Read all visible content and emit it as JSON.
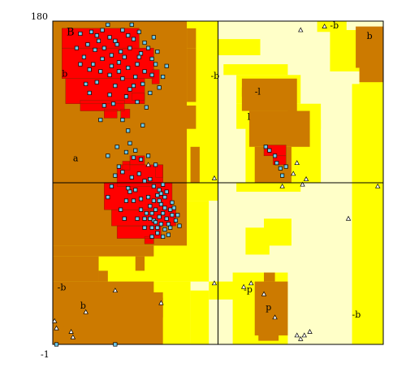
{
  "chart_data": {
    "type": "scatter",
    "title": "",
    "xlabel": "",
    "ylabel": "",
    "xlim": [
      -180,
      180
    ],
    "ylim": [
      -180,
      180
    ],
    "tick_labels": {
      "top_left": "180",
      "bottom_left": "-1"
    },
    "grid": "cross lines at phi=0 and psi=0",
    "legend": "none",
    "colors": {
      "core": "#ff0000",
      "allowed": "#cc7a00",
      "generous": "#ffff00",
      "outer": "#ffffc8",
      "glycine": "#6ec8e8"
    },
    "region_labels": [
      {
        "text": "B",
        "phi": -165,
        "psi": 164
      },
      {
        "text": "b",
        "phi": -170,
        "psi": 118
      },
      {
        "text": "a",
        "phi": -158,
        "psi": 24
      },
      {
        "text": "-b",
        "phi": -8,
        "psi": 116
      },
      {
        "text": "-l",
        "phi": 40,
        "psi": 98
      },
      {
        "text": "l",
        "phi": 32,
        "psi": 70
      },
      {
        "text": "-b",
        "phi": 122,
        "psi": 172
      },
      {
        "text": "b",
        "phi": 162,
        "psi": 160
      },
      {
        "text": "-b",
        "phi": -175,
        "psi": -120
      },
      {
        "text": "b",
        "phi": -150,
        "psi": -140
      },
      {
        "text": "-p",
        "phi": 28,
        "psi": -122
      },
      {
        "text": "p",
        "phi": 52,
        "psi": -142
      },
      {
        "text": "-b",
        "phi": 146,
        "psi": -150
      }
    ],
    "series": [
      {
        "marker": "square",
        "points": [
          [
            -150,
            166
          ],
          [
            -138,
            168
          ],
          [
            -132,
            164
          ],
          [
            -126,
            170
          ],
          [
            -118,
            162
          ],
          [
            -112,
            158
          ],
          [
            -104,
            170
          ],
          [
            -98,
            164
          ],
          [
            -92,
            160
          ],
          [
            -86,
            168
          ],
          [
            -80,
            156
          ],
          [
            -76,
            150
          ],
          [
            -70,
            162
          ],
          [
            -66,
            146
          ],
          [
            -72,
            138
          ],
          [
            -84,
            144
          ],
          [
            -96,
            150
          ],
          [
            -106,
            146
          ],
          [
            -116,
            142
          ],
          [
            -124,
            150
          ],
          [
            -134,
            148
          ],
          [
            -142,
            154
          ],
          [
            -146,
            140
          ],
          [
            -136,
            132
          ],
          [
            -126,
            138
          ],
          [
            -116,
            130
          ],
          [
            -108,
            134
          ],
          [
            -98,
            128
          ],
          [
            -88,
            132
          ],
          [
            -80,
            124
          ],
          [
            -72,
            120
          ],
          [
            -90,
            118
          ],
          [
            -104,
            116
          ],
          [
            -118,
            120
          ],
          [
            -128,
            124
          ],
          [
            -140,
            126
          ],
          [
            -150,
            132
          ],
          [
            -132,
            112
          ],
          [
            -112,
            108
          ],
          [
            -96,
            104
          ],
          [
            -82,
            110
          ],
          [
            -74,
            100
          ],
          [
            -100,
            96
          ],
          [
            -118,
            98
          ],
          [
            -88,
            90
          ],
          [
            -124,
            86
          ],
          [
            -78,
            84
          ],
          [
            -60,
            118
          ],
          [
            -56,
            130
          ],
          [
            -64,
            106
          ],
          [
            -144,
            110
          ],
          [
            -154,
            150
          ],
          [
            -110,
            154
          ],
          [
            -94,
            176
          ],
          [
            -120,
            176
          ],
          [
            -86,
            140
          ],
          [
            -102,
            140
          ],
          [
            -130,
            158
          ],
          [
            -108,
            124
          ],
          [
            -140,
            100
          ],
          [
            -68,
            132
          ],
          [
            -92,
            108
          ],
          [
            -114,
            88
          ],
          [
            -128,
            70
          ],
          [
            -104,
            70
          ],
          [
            -82,
            64
          ],
          [
            -98,
            58
          ],
          [
            -96,
            -10
          ],
          [
            -108,
            18
          ],
          [
            -112,
            8
          ],
          [
            -104,
            12
          ],
          [
            -94,
            6
          ],
          [
            -86,
            10
          ],
          [
            -80,
            2
          ],
          [
            -74,
            4
          ],
          [
            -70,
            -4
          ],
          [
            -64,
            -8
          ],
          [
            -60,
            -2
          ],
          [
            -66,
            -14
          ],
          [
            -58,
            -16
          ],
          [
            -62,
            -24
          ],
          [
            -70,
            -20
          ],
          [
            -68,
            -30
          ],
          [
            -60,
            -34
          ],
          [
            -64,
            -38
          ],
          [
            -56,
            -40
          ],
          [
            -52,
            -30
          ],
          [
            -50,
            -22
          ],
          [
            -54,
            -46
          ],
          [
            -62,
            -46
          ],
          [
            -70,
            -42
          ],
          [
            -72,
            -34
          ],
          [
            -66,
            -50
          ],
          [
            -58,
            -52
          ],
          [
            -50,
            -36
          ],
          [
            -48,
            -28
          ],
          [
            -46,
            -42
          ],
          [
            -74,
            -26
          ],
          [
            -78,
            -34
          ],
          [
            -72,
            -50
          ],
          [
            -80,
            -40
          ],
          [
            -84,
            -30
          ],
          [
            -76,
            -16
          ],
          [
            -84,
            -18
          ],
          [
            -90,
            -8
          ],
          [
            -98,
            -6
          ],
          [
            -92,
            -20
          ],
          [
            -100,
            -20
          ],
          [
            -116,
            -4
          ],
          [
            -120,
            -16
          ],
          [
            -106,
            -30
          ],
          [
            -88,
            -40
          ],
          [
            -80,
            -50
          ],
          [
            -66,
            -56
          ],
          [
            -54,
            -58
          ],
          [
            -60,
            -60
          ],
          [
            -72,
            -60
          ],
          [
            -100,
            34
          ],
          [
            -92,
            28
          ],
          [
            -84,
            26
          ],
          [
            -76,
            30
          ],
          [
            -68,
            20
          ],
          [
            -120,
            30
          ],
          [
            -110,
            40
          ],
          [
            -96,
            44
          ],
          [
            -90,
            36
          ],
          [
            -56,
            -10
          ],
          [
            -44,
            -36
          ],
          [
            -42,
            -48
          ],
          [
            -58,
            -28
          ],
          [
            -64,
            -20
          ],
          [
            -52,
            -50
          ],
          [
            -68,
            -44
          ],
          [
            -74,
            -40
          ],
          [
            -62,
            -12
          ],
          [
            -102,
            -40
          ],
          [
            52,
            40
          ],
          [
            56,
            36
          ],
          [
            62,
            30
          ],
          [
            64,
            22
          ],
          [
            68,
            16
          ],
          [
            74,
            18
          ],
          [
            70,
            8
          ],
          [
            -176,
            -180
          ],
          [
            -112,
            -180
          ]
        ]
      },
      {
        "marker": "triangle",
        "points": [
          [
            90,
            170
          ],
          [
            116,
            174
          ],
          [
            -4,
            5
          ],
          [
            -76,
            20
          ],
          [
            -112,
            -120
          ],
          [
            -62,
            -134
          ],
          [
            -144,
            -144
          ],
          [
            -4,
            -112
          ],
          [
            -176,
            -162
          ],
          [
            -160,
            -166
          ],
          [
            -158,
            -172
          ],
          [
            28,
            -116
          ],
          [
            50,
            -124
          ],
          [
            62,
            -150
          ],
          [
            86,
            -170
          ],
          [
            94,
            -170
          ],
          [
            100,
            -166
          ],
          [
            90,
            -174
          ],
          [
            86,
            22
          ],
          [
            92,
            -2
          ],
          [
            96,
            4
          ],
          [
            142,
            -40
          ],
          [
            70,
            -4
          ],
          [
            174,
            -4
          ],
          [
            36,
            -112
          ],
          [
            -178,
            -154
          ],
          [
            82,
            10
          ]
        ]
      }
    ]
  }
}
